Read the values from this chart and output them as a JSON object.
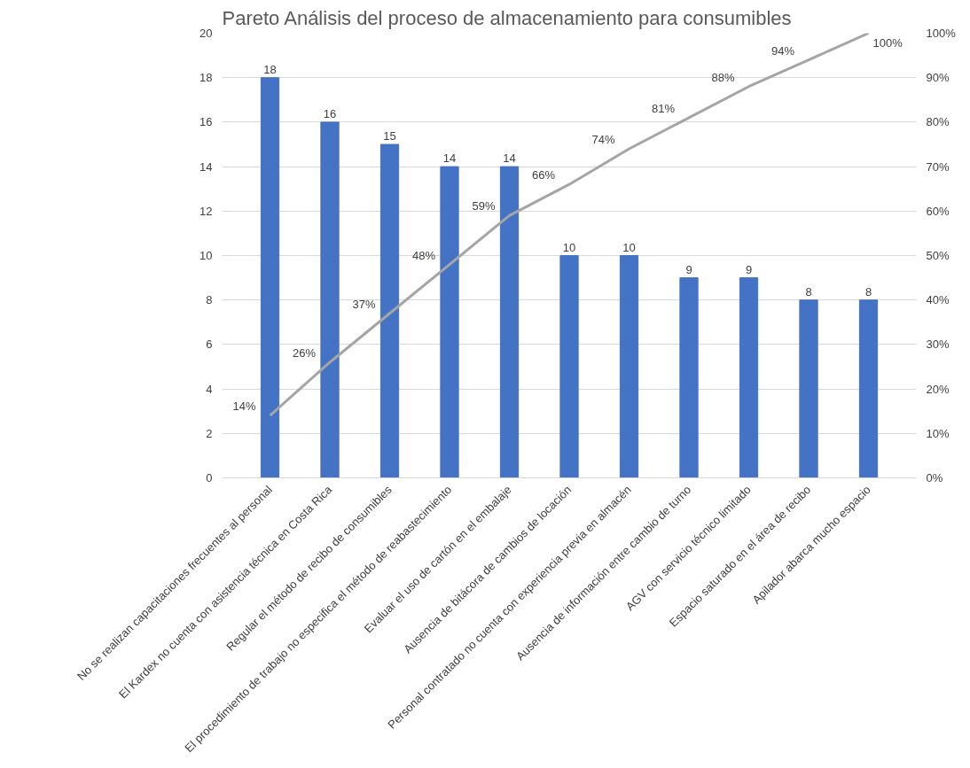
{
  "chart_data": {
    "type": "bar",
    "title": "Pareto Análisis del proceso de almacenamiento para consumibles",
    "categories": [
      "No se realizan capacitaciones frecuentes al personal",
      "El Kardex no cuenta con asistencia técnica en Costa Rica",
      "Regular el método de recibo de consumibles",
      "El procedimiento de trabajo no especifica el método de reabastecimiento",
      "Evaluar el uso de cartón en el embalaje",
      "Ausencia de bitácora de cambios de locación",
      "Personal contratado no cuenta con experiencia previa en almacén",
      "Ausencia de información entre cambio de turno",
      "AGV con servicio técnico limitado",
      "Espacio saturado en el área de recibo",
      "Apilador abarca mucho espacio"
    ],
    "series": [
      {
        "color": "#4472c4",
        "values": [
          18,
          16,
          15,
          14,
          14,
          10,
          10,
          9,
          9,
          8,
          8
        ]
      },
      {
        "type": "line",
        "axis": "y2",
        "color": "#a5a5a5",
        "values": [
          14,
          26,
          37,
          48,
          59,
          66,
          74,
          81,
          88,
          94,
          100
        ],
        "value_labels": [
          "14%",
          "26%",
          "37%",
          "48%",
          "59%",
          "66%",
          "74%",
          "81%",
          "88%",
          "94%",
          "100%"
        ]
      }
    ],
    "ylim": [
      0,
      20
    ],
    "yticks": [
      0,
      2,
      4,
      6,
      8,
      10,
      12,
      14,
      16,
      18,
      20
    ],
    "y2lim": [
      0,
      100
    ],
    "y2ticks": [
      {
        "value": 0,
        "label": "0%"
      },
      {
        "value": 10,
        "label": "10%"
      },
      {
        "value": 20,
        "label": "20%"
      },
      {
        "value": 30,
        "label": "30%"
      },
      {
        "value": 40,
        "label": "40%"
      },
      {
        "value": 50,
        "label": "50%"
      },
      {
        "value": 60,
        "label": "60%"
      },
      {
        "value": 70,
        "label": "70%"
      },
      {
        "value": 80,
        "label": "80%"
      },
      {
        "value": 90,
        "label": "90%"
      },
      {
        "value": 100,
        "label": "100%"
      }
    ],
    "grid": "y",
    "data_labels": true,
    "marker": "none",
    "line_style": "solid"
  }
}
